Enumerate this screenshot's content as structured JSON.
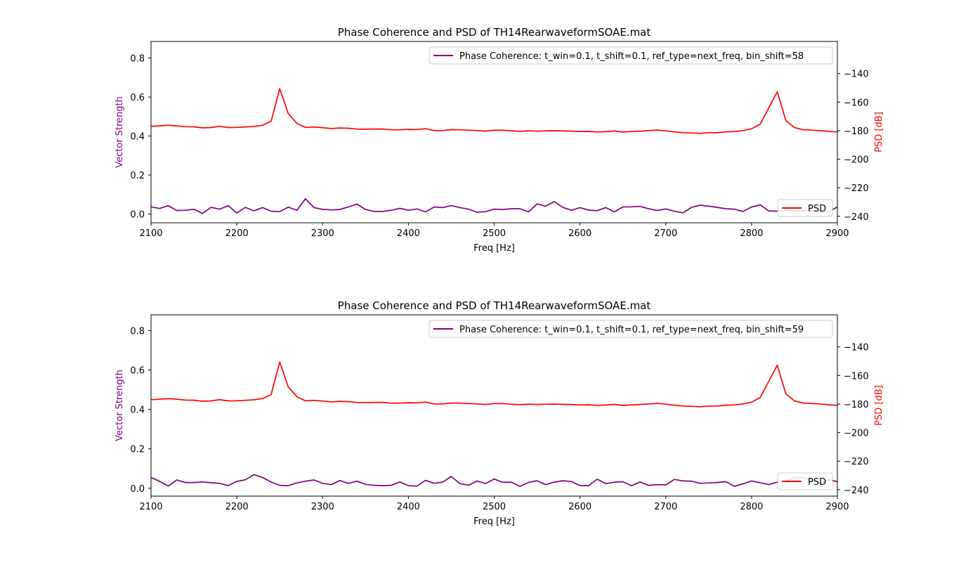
{
  "colors": {
    "coherence": "#800080",
    "psd": "#ff0000",
    "axis": "#000000"
  },
  "chart_data": [
    {
      "type": "line",
      "title": "Phase Coherence and PSD of TH14RearwaveformSOAE.mat",
      "xlabel": "Freq [Hz]",
      "ylabel_left": "Vector Strength",
      "ylabel_right": "PSD [dB]",
      "xlim": [
        2100,
        2900
      ],
      "ylim_left": [
        -0.045,
        0.885
      ],
      "ylim_right": [
        -244.5,
        -117.5
      ],
      "xticks": [
        "2100",
        "2200",
        "2300",
        "2400",
        "2500",
        "2600",
        "2700",
        "2800",
        "2900"
      ],
      "yticks_left": [
        "0.0",
        "0.2",
        "0.4",
        "0.6",
        "0.8"
      ],
      "yticks_right": [
        "−240",
        "−220",
        "−200",
        "−180",
        "−160",
        "−140"
      ],
      "legend_left": "top-right",
      "legend_right": "lower-right",
      "x": [
        2100,
        2110,
        2120,
        2130,
        2140,
        2150,
        2160,
        2170,
        2180,
        2190,
        2200,
        2210,
        2220,
        2230,
        2240,
        2250,
        2260,
        2270,
        2280,
        2290,
        2300,
        2310,
        2320,
        2330,
        2340,
        2350,
        2360,
        2370,
        2380,
        2390,
        2400,
        2410,
        2420,
        2430,
        2440,
        2450,
        2460,
        2470,
        2480,
        2490,
        2500,
        2510,
        2520,
        2530,
        2540,
        2550,
        2560,
        2570,
        2580,
        2590,
        2600,
        2610,
        2620,
        2630,
        2640,
        2650,
        2660,
        2670,
        2680,
        2690,
        2700,
        2710,
        2720,
        2730,
        2740,
        2750,
        2760,
        2770,
        2780,
        2790,
        2800,
        2810,
        2820,
        2830,
        2840,
        2850,
        2860,
        2870,
        2880,
        2890,
        2900
      ],
      "series": [
        {
          "name": "Phase Coherence: t_win=0.1, t_shift=0.1, ref_type=next_freq, bin_shift=58",
          "axis": "left",
          "values": [
            0.037,
            0.028,
            0.043,
            0.018,
            0.019,
            0.024,
            0.003,
            0.034,
            0.025,
            0.043,
            0.005,
            0.034,
            0.016,
            0.033,
            0.014,
            0.012,
            0.035,
            0.019,
            0.078,
            0.033,
            0.024,
            0.021,
            0.023,
            0.036,
            0.051,
            0.023,
            0.013,
            0.013,
            0.019,
            0.029,
            0.019,
            0.026,
            0.011,
            0.036,
            0.033,
            0.043,
            0.033,
            0.025,
            0.009,
            0.012,
            0.025,
            0.023,
            0.027,
            0.027,
            0.011,
            0.052,
            0.04,
            0.064,
            0.034,
            0.019,
            0.033,
            0.02,
            0.017,
            0.033,
            0.011,
            0.036,
            0.037,
            0.039,
            0.027,
            0.018,
            0.026,
            0.014,
            0.006,
            0.034,
            0.045,
            0.04,
            0.034,
            0.027,
            0.025,
            0.013,
            0.036,
            0.047,
            0.016,
            0.014,
            0.02,
            0.014,
            0.018,
            0.016,
            0.015,
            0.012,
            0.036
          ]
        },
        {
          "name": "PSD",
          "axis": "right",
          "values": [
            -176.9,
            -176.6,
            -176.2,
            -176.6,
            -177.2,
            -177.3,
            -178.0,
            -177.8,
            -176.9,
            -177.8,
            -177.7,
            -177.4,
            -177.0,
            -176.2,
            -173.3,
            -150.6,
            -168.0,
            -174.9,
            -177.7,
            -177.4,
            -177.9,
            -178.5,
            -178.1,
            -178.3,
            -178.9,
            -179.0,
            -178.9,
            -178.8,
            -179.4,
            -179.4,
            -179.1,
            -179.2,
            -178.6,
            -179.9,
            -179.9,
            -179.3,
            -179.4,
            -179.6,
            -179.9,
            -180.3,
            -179.6,
            -179.7,
            -180.1,
            -180.4,
            -180.1,
            -180.3,
            -180.1,
            -180.0,
            -180.2,
            -180.3,
            -180.6,
            -180.5,
            -180.9,
            -180.7,
            -180.2,
            -181.0,
            -180.6,
            -180.3,
            -179.9,
            -179.5,
            -180.1,
            -180.8,
            -181.4,
            -181.6,
            -181.9,
            -181.4,
            -181.4,
            -180.8,
            -180.6,
            -179.9,
            -178.7,
            -175.5,
            -164.0,
            -152.8,
            -172.9,
            -177.8,
            -179.3,
            -179.6,
            -180.0,
            -180.5,
            -180.9
          ]
        }
      ]
    },
    {
      "type": "line",
      "title": "Phase Coherence and PSD of TH14RearwaveformSOAE.mat",
      "xlabel": "Freq [Hz]",
      "ylabel_left": "Vector Strength",
      "ylabel_right": "PSD [dB]",
      "xlim": [
        2100,
        2900
      ],
      "ylim_left": [
        -0.04,
        0.88
      ],
      "ylim_right": [
        -244.5,
        -117.5
      ],
      "xticks": [
        "2100",
        "2200",
        "2300",
        "2400",
        "2500",
        "2600",
        "2700",
        "2800",
        "2900"
      ],
      "yticks_left": [
        "0.0",
        "0.2",
        "0.4",
        "0.6",
        "0.8"
      ],
      "yticks_right": [
        "−240",
        "−220",
        "−200",
        "−180",
        "−160",
        "−140"
      ],
      "legend_left": "top-right",
      "legend_right": "lower-right",
      "x": [
        2100,
        2110,
        2120,
        2130,
        2140,
        2150,
        2160,
        2170,
        2180,
        2190,
        2200,
        2210,
        2220,
        2230,
        2240,
        2250,
        2260,
        2270,
        2280,
        2290,
        2300,
        2310,
        2320,
        2330,
        2340,
        2350,
        2360,
        2370,
        2380,
        2390,
        2400,
        2410,
        2420,
        2430,
        2440,
        2450,
        2460,
        2470,
        2480,
        2490,
        2500,
        2510,
        2520,
        2530,
        2540,
        2550,
        2560,
        2570,
        2580,
        2590,
        2600,
        2610,
        2620,
        2630,
        2640,
        2650,
        2660,
        2670,
        2680,
        2690,
        2700,
        2710,
        2720,
        2730,
        2740,
        2750,
        2760,
        2770,
        2780,
        2790,
        2800,
        2810,
        2820,
        2830,
        2840,
        2850,
        2860,
        2870,
        2880,
        2890,
        2900
      ],
      "series": [
        {
          "name": "Phase Coherence: t_win=0.1, t_shift=0.1, ref_type=next_freq, bin_shift=59",
          "axis": "left",
          "values": [
            0.055,
            0.035,
            0.011,
            0.042,
            0.029,
            0.029,
            0.032,
            0.028,
            0.025,
            0.013,
            0.035,
            0.043,
            0.069,
            0.055,
            0.031,
            0.015,
            0.013,
            0.027,
            0.036,
            0.042,
            0.025,
            0.018,
            0.039,
            0.025,
            0.036,
            0.02,
            0.015,
            0.013,
            0.015,
            0.032,
            0.013,
            0.011,
            0.04,
            0.025,
            0.031,
            0.06,
            0.024,
            0.015,
            0.037,
            0.024,
            0.047,
            0.03,
            0.031,
            0.01,
            0.029,
            0.038,
            0.018,
            0.031,
            0.038,
            0.034,
            0.014,
            0.013,
            0.046,
            0.023,
            0.031,
            0.033,
            0.013,
            0.032,
            0.015,
            0.018,
            0.017,
            0.045,
            0.037,
            0.036,
            0.025,
            0.027,
            0.029,
            0.033,
            0.01,
            0.022,
            0.037,
            0.028,
            0.019,
            0.031,
            0.034,
            0.055,
            0.053,
            0.04,
            0.025,
            0.043,
            0.033
          ]
        },
        {
          "name": "PSD",
          "axis": "right",
          "values": [
            -176.9,
            -176.6,
            -176.2,
            -176.6,
            -177.2,
            -177.3,
            -178.0,
            -177.8,
            -176.9,
            -177.8,
            -177.7,
            -177.4,
            -177.0,
            -176.2,
            -173.3,
            -150.6,
            -168.0,
            -174.9,
            -177.7,
            -177.4,
            -177.9,
            -178.5,
            -178.1,
            -178.3,
            -178.9,
            -179.0,
            -178.9,
            -178.8,
            -179.4,
            -179.4,
            -179.1,
            -179.2,
            -178.6,
            -179.9,
            -179.9,
            -179.3,
            -179.4,
            -179.6,
            -179.9,
            -180.3,
            -179.6,
            -179.7,
            -180.1,
            -180.4,
            -180.1,
            -180.3,
            -180.1,
            -180.0,
            -180.2,
            -180.3,
            -180.6,
            -180.5,
            -180.9,
            -180.7,
            -180.2,
            -181.0,
            -180.6,
            -180.3,
            -179.9,
            -179.5,
            -180.1,
            -180.8,
            -181.4,
            -181.6,
            -181.9,
            -181.4,
            -181.4,
            -180.8,
            -180.6,
            -179.9,
            -178.7,
            -175.5,
            -164.0,
            -152.8,
            -172.9,
            -177.8,
            -179.3,
            -179.6,
            -180.0,
            -180.5,
            -180.9
          ]
        }
      ]
    }
  ]
}
